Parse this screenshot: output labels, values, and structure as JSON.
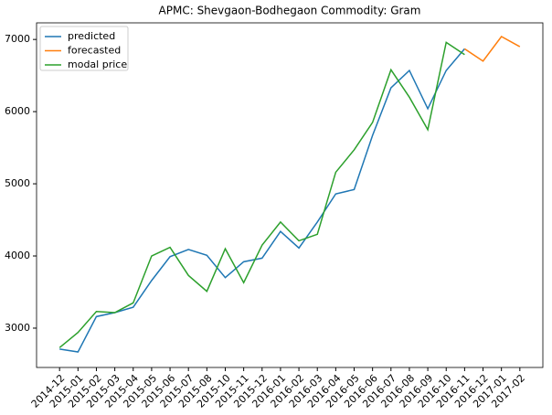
{
  "chart_data": {
    "type": "line",
    "title": "APMC: Shevgaon-Bodhegaon  Commodity: Gram",
    "categories": [
      "2014-12",
      "2015-01",
      "2015-02",
      "2015-03",
      "2015-04",
      "2015-05",
      "2015-06",
      "2015-07",
      "2015-08",
      "2015-10",
      "2015-11",
      "2015-12",
      "2016-01",
      "2016-02",
      "2016-03",
      "2016-04",
      "2016-05",
      "2016-06",
      "2016-07",
      "2016-08",
      "2016-09",
      "2016-10",
      "2016-11",
      "2016-12",
      "2017-01",
      "2017-02"
    ],
    "series": [
      {
        "name": "predicted",
        "color": "#1f77b4",
        "values": [
          2710,
          2670,
          3160,
          3215,
          3290,
          3660,
          3990,
          4090,
          4010,
          3700,
          3920,
          3970,
          4340,
          4110,
          4470,
          4860,
          4920,
          5670,
          6330,
          6570,
          6040,
          6570,
          6870,
          null,
          null,
          null
        ]
      },
      {
        "name": "forecasted",
        "color": "#ff7f0e",
        "values": [
          null,
          null,
          null,
          null,
          null,
          null,
          null,
          null,
          null,
          null,
          null,
          null,
          null,
          null,
          null,
          null,
          null,
          null,
          null,
          null,
          null,
          null,
          6870,
          6700,
          7040,
          6900
        ]
      },
      {
        "name": "modal price",
        "color": "#2ca02c",
        "values": [
          2730,
          2940,
          3230,
          3215,
          3350,
          4000,
          4120,
          3730,
          3510,
          4100,
          3630,
          4150,
          4470,
          4210,
          4300,
          5160,
          5470,
          5850,
          6580,
          6200,
          5750,
          6960,
          6790,
          null,
          null,
          null
        ]
      }
    ],
    "ylim": [
      2455,
      7230
    ],
    "yticks": [
      3000,
      4000,
      5000,
      6000,
      7000
    ],
    "legend": "upper left"
  }
}
